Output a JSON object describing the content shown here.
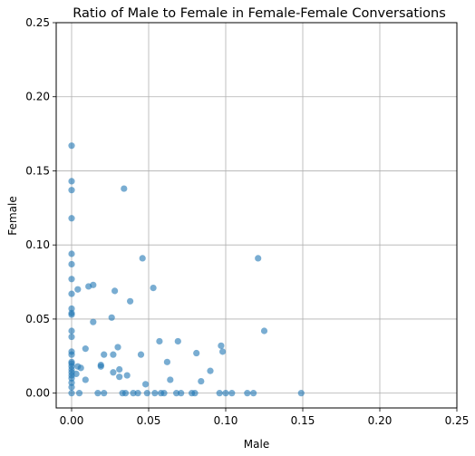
{
  "chart_data": {
    "type": "scatter",
    "title": "Ratio of Male to Female in Female-Female Conversations",
    "xlabel": "Male",
    "ylabel": "Female",
    "xlim": [
      -0.01,
      0.25
    ],
    "ylim": [
      -0.01,
      0.25
    ],
    "xticks": [
      0.0,
      0.05,
      0.1,
      0.15,
      0.2,
      0.25
    ],
    "yticks": [
      0.0,
      0.05,
      0.1,
      0.15,
      0.2,
      0.25
    ],
    "xtick_labels": [
      "0.00",
      "0.05",
      "0.10",
      "0.15",
      "0.20",
      "0.25"
    ],
    "ytick_labels": [
      "0.00",
      "0.05",
      "0.10",
      "0.15",
      "0.20",
      "0.25"
    ],
    "grid": true,
    "marker_color": "#1f77b4",
    "marker_alpha": 0.6,
    "points": [
      [
        0,
        0.167
      ],
      [
        0,
        0.143
      ],
      [
        0,
        0.137
      ],
      [
        0,
        0.118
      ],
      [
        0,
        0.094
      ],
      [
        0,
        0.087
      ],
      [
        0,
        0.077
      ],
      [
        0,
        0.067
      ],
      [
        0,
        0.057
      ],
      [
        0,
        0.054
      ],
      [
        0,
        0.053
      ],
      [
        0,
        0.042
      ],
      [
        0,
        0.038
      ],
      [
        0,
        0.028
      ],
      [
        0,
        0.026
      ],
      [
        0,
        0.021
      ],
      [
        0,
        0.02
      ],
      [
        0,
        0.018
      ],
      [
        0,
        0.016
      ],
      [
        0,
        0.014
      ],
      [
        0,
        0.012
      ],
      [
        0,
        0.01
      ],
      [
        0,
        0.007
      ],
      [
        0,
        0.004
      ],
      [
        0,
        0.0
      ],
      [
        0.004,
        0.07
      ],
      [
        0.004,
        0.018
      ],
      [
        0.006,
        0.017
      ],
      [
        0.003,
        0.013
      ],
      [
        0.005,
        0.0
      ],
      [
        0.009,
        0.03
      ],
      [
        0.009,
        0.009
      ],
      [
        0.011,
        0.072
      ],
      [
        0.014,
        0.073
      ],
      [
        0.014,
        0.048
      ],
      [
        0.017,
        0.0
      ],
      [
        0.019,
        0.019
      ],
      [
        0.019,
        0.018
      ],
      [
        0.021,
        0.026
      ],
      [
        0.021,
        0.0
      ],
      [
        0.026,
        0.051
      ],
      [
        0.027,
        0.026
      ],
      [
        0.027,
        0.014
      ],
      [
        0.028,
        0.069
      ],
      [
        0.03,
        0.031
      ],
      [
        0.031,
        0.016
      ],
      [
        0.031,
        0.011
      ],
      [
        0.033,
        0.0
      ],
      [
        0.034,
        0.138
      ],
      [
        0.035,
        0.0
      ],
      [
        0.036,
        0.012
      ],
      [
        0.038,
        0.062
      ],
      [
        0.04,
        0.0
      ],
      [
        0.043,
        0.0
      ],
      [
        0.045,
        0.026
      ],
      [
        0.046,
        0.091
      ],
      [
        0.048,
        0.006
      ],
      [
        0.049,
        0.0
      ],
      [
        0.053,
        0.071
      ],
      [
        0.054,
        0.0
      ],
      [
        0.057,
        0.035
      ],
      [
        0.058,
        0.0
      ],
      [
        0.06,
        0.0
      ],
      [
        0.062,
        0.021
      ],
      [
        0.064,
        0.009
      ],
      [
        0.068,
        0.0
      ],
      [
        0.069,
        0.035
      ],
      [
        0.071,
        0.0
      ],
      [
        0.078,
        0.0
      ],
      [
        0.08,
        0.0
      ],
      [
        0.081,
        0.027
      ],
      [
        0.084,
        0.008
      ],
      [
        0.09,
        0.015
      ],
      [
        0.096,
        0.0
      ],
      [
        0.097,
        0.032
      ],
      [
        0.098,
        0.028
      ],
      [
        0.1,
        0.0
      ],
      [
        0.104,
        0.0
      ],
      [
        0.114,
        0.0
      ],
      [
        0.118,
        0.0
      ],
      [
        0.121,
        0.091
      ],
      [
        0.125,
        0.042
      ],
      [
        0.149,
        0.0
      ]
    ]
  }
}
